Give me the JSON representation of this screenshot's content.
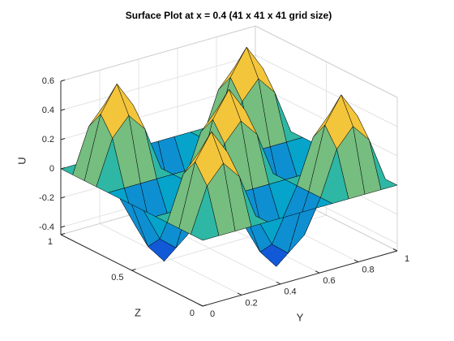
{
  "chart_data": {
    "type": "surface",
    "title": "Surface Plot at x = 0.4 (41 x 41 x 41 grid size)",
    "xlabel": "Y",
    "ylabel": "Z",
    "zlabel": "U",
    "x": [
      0,
      0.0833,
      0.1667,
      0.25,
      0.3333,
      0.4167,
      0.5,
      0.5833,
      0.6667,
      0.75,
      0.8333,
      0.9167,
      1
    ],
    "y": [
      0,
      0.0833,
      0.1667,
      0.25,
      0.3333,
      0.4167,
      0.5,
      0.5833,
      0.6667,
      0.75,
      0.8333,
      0.9167,
      1
    ],
    "values": [
      [
        0,
        0,
        0,
        0,
        0,
        0,
        0,
        0,
        0,
        0,
        0,
        0,
        0
      ],
      [
        0,
        0.3,
        0.4243,
        0.3,
        0,
        -0.225,
        -0.3182,
        -0.225,
        0,
        0.3,
        0.4243,
        0.3,
        0
      ],
      [
        0,
        0.4243,
        0.6,
        0.4243,
        0,
        -0.3182,
        -0.45,
        -0.3182,
        0,
        0.4243,
        0.6,
        0.4243,
        0
      ],
      [
        0,
        0.3,
        0.4243,
        0.3,
        0,
        -0.225,
        -0.3182,
        -0.225,
        0,
        0.3,
        0.4243,
        0.3,
        0
      ],
      [
        0,
        0,
        0,
        0,
        0,
        0,
        0,
        0,
        0,
        0,
        0,
        0,
        0
      ],
      [
        0,
        -0.225,
        -0.3182,
        -0.225,
        0,
        0.3,
        0.4243,
        0.3,
        0,
        -0.225,
        -0.3182,
        -0.225,
        0
      ],
      [
        0,
        -0.3182,
        -0.45,
        -0.3182,
        0,
        0.4243,
        0.6,
        0.4243,
        0,
        -0.3182,
        -0.45,
        -0.3182,
        0
      ],
      [
        0,
        -0.225,
        -0.3182,
        -0.225,
        0,
        0.3,
        0.4243,
        0.3,
        0,
        -0.225,
        -0.3182,
        -0.225,
        0
      ],
      [
        0,
        0,
        0,
        0,
        0,
        0,
        0,
        0,
        0,
        0,
        0,
        0,
        0
      ],
      [
        0,
        0.3,
        0.4243,
        0.3,
        0,
        -0.225,
        -0.3182,
        -0.225,
        0,
        0.3,
        0.4243,
        0.3,
        0
      ],
      [
        0,
        0.4243,
        0.6,
        0.4243,
        0,
        -0.3182,
        -0.45,
        -0.3182,
        0,
        0.4243,
        0.6,
        0.4243,
        0
      ],
      [
        0,
        0.3,
        0.4243,
        0.3,
        0,
        -0.225,
        -0.3182,
        -0.225,
        0,
        0.3,
        0.4243,
        0.3,
        0
      ],
      [
        0,
        0,
        0,
        0,
        0,
        0,
        0,
        0,
        0,
        0,
        0,
        0,
        0
      ]
    ],
    "xlim": [
      0,
      1
    ],
    "ylim": [
      0,
      1
    ],
    "zlim": [
      -0.45,
      0.6
    ],
    "xticks": [
      0,
      0.2,
      0.4,
      0.6,
      0.8,
      1
    ],
    "yticks": [
      0,
      0.5,
      1
    ],
    "zticks": [
      -0.4,
      -0.2,
      0,
      0.2,
      0.4,
      0.6
    ],
    "grid": true,
    "colormap": [
      "#352a87",
      "#0f5cdd",
      "#1481d6",
      "#06a4ca",
      "#2eb7a4",
      "#87bf77",
      "#d1bb59",
      "#fec832",
      "#f9fb0e"
    ]
  }
}
